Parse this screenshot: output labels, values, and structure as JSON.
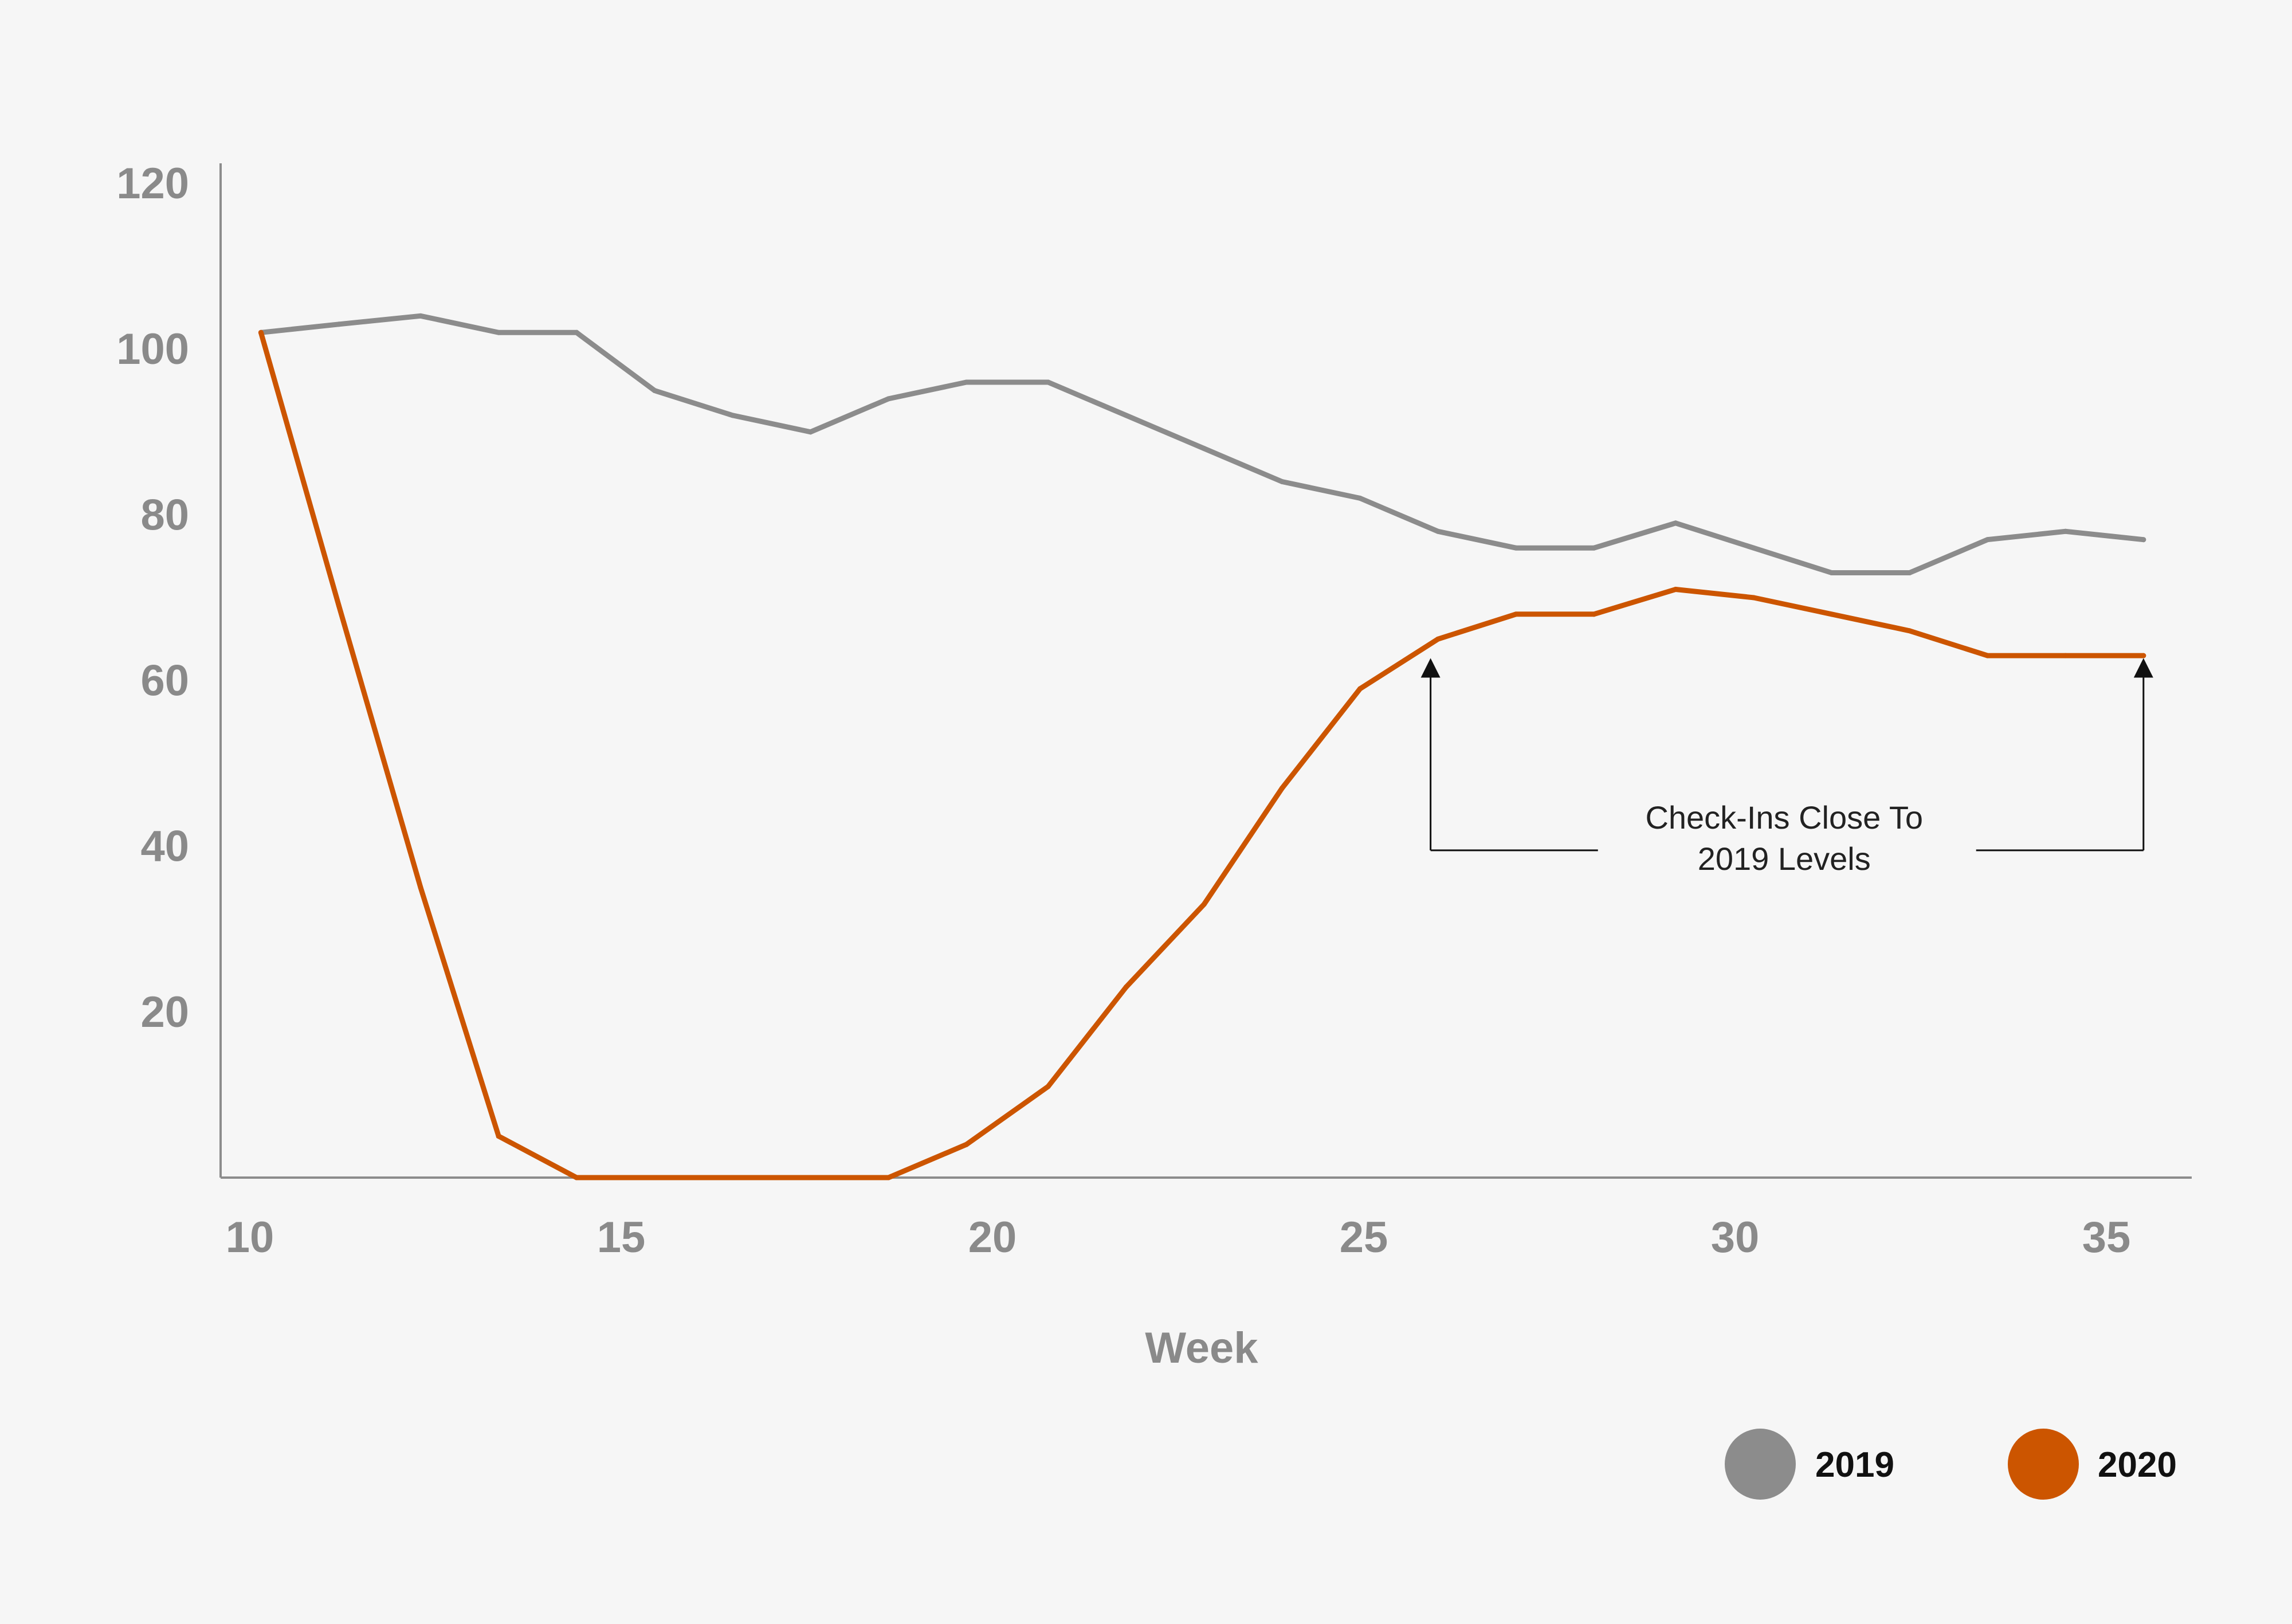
{
  "chart_data": {
    "type": "line",
    "xlabel": "Week",
    "ylabel": "",
    "xlim": [
      10,
      36
    ],
    "ylim": [
      0,
      120
    ],
    "x_ticks": [
      "10",
      "15",
      "20",
      "25",
      "30",
      "35"
    ],
    "y_ticks": [
      "20",
      "40",
      "60",
      "80",
      "100",
      "120"
    ],
    "grid": false,
    "legend_position": "bottom-right",
    "series": [
      {
        "name": "2019",
        "color": "#8c8c8c",
        "x": [
          10.15,
          11.2,
          12.3,
          13.35,
          14.4,
          15.45,
          16.5,
          17.55,
          18.6,
          19.65,
          20.75,
          21.8,
          22.85,
          23.9,
          24.95,
          26.0,
          27.05,
          28.1,
          29.2,
          30.25,
          31.3,
          32.35,
          33.4,
          34.45,
          35.5
        ],
        "values": [
          102,
          103,
          104,
          102,
          102,
          95,
          92,
          90,
          94,
          96,
          96,
          92,
          88,
          84,
          82,
          78,
          76,
          76,
          79,
          76,
          73,
          73,
          77,
          78,
          77
        ]
      },
      {
        "name": "2020",
        "color": "#cc5500",
        "x": [
          10.15,
          11.2,
          12.3,
          13.35,
          14.4,
          15.45,
          16.5,
          17.55,
          18.6,
          19.65,
          20.75,
          21.8,
          22.85,
          23.9,
          24.95,
          26.0,
          27.05,
          28.1,
          29.2,
          30.25,
          31.3,
          32.35,
          33.4,
          34.45,
          35.5
        ],
        "values": [
          102,
          69,
          35,
          5,
          0,
          0,
          0,
          0,
          0,
          4,
          11,
          23,
          33,
          47,
          59,
          65,
          68,
          68,
          71,
          70,
          68,
          66,
          63,
          63,
          63
        ]
      }
    ],
    "annotations": [
      {
        "text_lines": [
          "Check-Ins Close To",
          "2019 Levels"
        ],
        "from_x": 25.9,
        "to_x": 35.5,
        "arrow_y": 60,
        "bracket_y": 39.5
      }
    ]
  }
}
